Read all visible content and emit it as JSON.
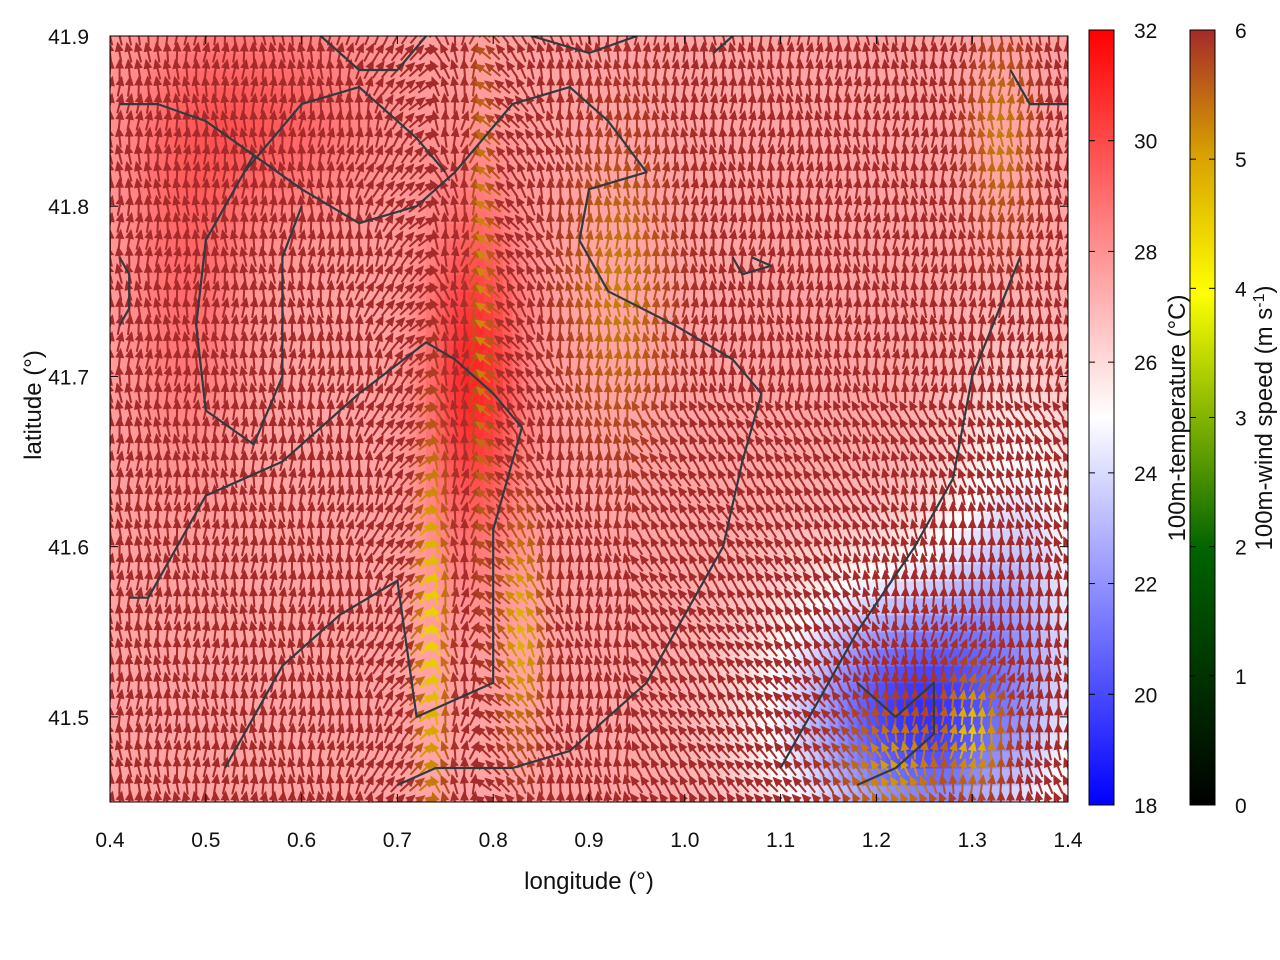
{
  "chart_data": {
    "type": "heatmap",
    "subtype": "vector-field-over-temperature-map-with-contours",
    "title": "",
    "xlabel": "longitude (°)",
    "ylabel": "latitude (°)",
    "xlim": [
      0.4,
      1.4
    ],
    "ylim": [
      41.45,
      41.9
    ],
    "xticks": [
      "0.4",
      "0.5",
      "0.6",
      "0.7",
      "0.8",
      "0.9",
      "1.0",
      "1.1",
      "1.2",
      "1.3",
      "1.4"
    ],
    "xtick_values": [
      0.4,
      0.5,
      0.6,
      0.7,
      0.8,
      0.9,
      1.0,
      1.1,
      1.2,
      1.3,
      1.4
    ],
    "yticks": [
      "41.5",
      "41.6",
      "41.7",
      "41.8",
      "41.9"
    ],
    "ytick_values": [
      41.5,
      41.6,
      41.7,
      41.8,
      41.9
    ],
    "grid": false,
    "colorbars": [
      {
        "label": "100m-temperature (°C)",
        "min": 18,
        "max": 32,
        "ticks": [
          "18",
          "20",
          "22",
          "24",
          "26",
          "28",
          "30",
          "32"
        ],
        "tick_values": [
          18,
          20,
          22,
          24,
          26,
          28,
          30,
          32
        ],
        "colors": [
          "#0000ff",
          "#ffffff",
          "#ff0000"
        ]
      },
      {
        "label": "100m-wind speed (m s",
        "label_sup": "-1",
        "label_end": ")",
        "min": 0,
        "max": 6,
        "ticks": [
          "0",
          "1",
          "2",
          "3",
          "4",
          "5",
          "6"
        ],
        "tick_values": [
          0,
          1,
          2,
          3,
          4,
          5,
          6
        ],
        "colors": [
          "#000000",
          "#006400",
          "#ffff00",
          "#d8a000",
          "#a52a2a"
        ]
      }
    ],
    "temperature_field": {
      "background_c": 27.5,
      "features": [
        {
          "kind": "warm",
          "lon": 0.78,
          "lat": 41.7,
          "amplitude": 3.5,
          "radius_lon": 0.05,
          "radius_lat": 0.1
        },
        {
          "kind": "warm",
          "lon": 0.55,
          "lat": 41.85,
          "amplitude": 2.0,
          "radius_lon": 0.12,
          "radius_lat": 0.06
        },
        {
          "kind": "warm",
          "lon": 0.48,
          "lat": 41.75,
          "amplitude": 1.5,
          "radius_lon": 0.06,
          "radius_lat": 0.1
        },
        {
          "kind": "cool",
          "lon": 1.24,
          "lat": 41.5,
          "amplitude": -8.0,
          "radius_lon": 0.14,
          "radius_lat": 0.08
        },
        {
          "kind": "cool",
          "lon": 1.35,
          "lat": 41.6,
          "amplitude": -3.0,
          "radius_lon": 0.08,
          "radius_lat": 0.1
        }
      ]
    },
    "wind_field": {
      "grid_spacing_deg": 0.01,
      "background_speed_ms": 6.0,
      "slow_zones": [
        {
          "lon": 0.735,
          "lat": 41.55,
          "min_speed": 4.3,
          "radius_lon": 0.015,
          "radius_lat": 0.1
        },
        {
          "lon": 0.79,
          "lat": 41.75,
          "min_speed": 5.2,
          "radius_lon": 0.012,
          "radius_lat": 0.15
        },
        {
          "lon": 0.83,
          "lat": 41.55,
          "min_speed": 4.8,
          "radius_lon": 0.02,
          "radius_lat": 0.06
        },
        {
          "lon": 0.93,
          "lat": 41.75,
          "min_speed": 5.3,
          "radius_lon": 0.05,
          "radius_lat": 0.08
        },
        {
          "lon": 1.22,
          "lat": 41.47,
          "min_speed": 5.0,
          "radius_lon": 0.05,
          "radius_lat": 0.03
        },
        {
          "lon": 1.3,
          "lat": 41.49,
          "min_speed": 4.6,
          "radius_lon": 0.03,
          "radius_lat": 0.03
        },
        {
          "lon": 1.33,
          "lat": 41.84,
          "min_speed": 5.3,
          "radius_lon": 0.03,
          "radius_lat": 0.05
        }
      ],
      "convergence_lines": [
        {
          "lon": 0.79
        },
        {
          "lon": 0.735
        }
      ],
      "diffluence_point": {
        "lon": 1.23,
        "lat": 41.53
      }
    },
    "contours": [
      {
        "name": "c1",
        "points": [
          [
            0.42,
            41.57
          ],
          [
            0.44,
            41.57
          ],
          [
            0.5,
            41.63
          ],
          [
            0.58,
            41.65
          ],
          [
            0.66,
            41.69
          ],
          [
            0.73,
            41.72
          ],
          [
            0.76,
            41.71
          ],
          [
            0.8,
            41.69
          ],
          [
            0.83,
            41.67
          ],
          [
            0.8,
            41.61
          ],
          [
            0.8,
            41.52
          ],
          [
            0.76,
            41.51
          ],
          [
            0.72,
            41.5
          ],
          [
            0.7,
            41.58
          ],
          [
            0.64,
            41.56
          ],
          [
            0.58,
            41.53
          ],
          [
            0.52,
            41.47
          ]
        ]
      },
      {
        "name": "c2",
        "points": [
          [
            0.41,
            41.86
          ],
          [
            0.45,
            41.86
          ],
          [
            0.5,
            41.85
          ],
          [
            0.55,
            41.83
          ],
          [
            0.6,
            41.81
          ],
          [
            0.66,
            41.79
          ],
          [
            0.72,
            41.8
          ],
          [
            0.76,
            41.82
          ],
          [
            0.82,
            41.86
          ],
          [
            0.88,
            41.87
          ],
          [
            0.92,
            41.85
          ],
          [
            0.96,
            41.82
          ],
          [
            0.9,
            41.81
          ],
          [
            0.89,
            41.78
          ],
          [
            0.92,
            41.75
          ],
          [
            0.99,
            41.73
          ],
          [
            1.05,
            41.71
          ],
          [
            1.08,
            41.69
          ],
          [
            1.06,
            41.65
          ],
          [
            1.04,
            41.6
          ],
          [
            1.0,
            41.56
          ],
          [
            0.96,
            41.52
          ],
          [
            0.92,
            41.5
          ],
          [
            0.88,
            41.48
          ],
          [
            0.82,
            41.47
          ],
          [
            0.74,
            41.47
          ],
          [
            0.7,
            41.46
          ]
        ]
      },
      {
        "name": "c3",
        "points": [
          [
            0.54,
            41.82
          ],
          [
            0.6,
            41.86
          ],
          [
            0.66,
            41.87
          ],
          [
            0.72,
            41.84
          ],
          [
            0.75,
            41.82
          ]
        ]
      },
      {
        "name": "c4",
        "points": [
          [
            0.62,
            41.9
          ],
          [
            0.66,
            41.88
          ],
          [
            0.7,
            41.88
          ],
          [
            0.73,
            41.9
          ]
        ]
      },
      {
        "name": "c5",
        "points": [
          [
            0.84,
            41.9
          ],
          [
            0.9,
            41.89
          ],
          [
            0.95,
            41.9
          ]
        ]
      },
      {
        "name": "c6",
        "points": [
          [
            1.03,
            41.89
          ],
          [
            1.05,
            41.9
          ]
        ]
      },
      {
        "name": "c7",
        "points": [
          [
            1.34,
            41.88
          ],
          [
            1.36,
            41.86
          ],
          [
            1.4,
            41.86
          ]
        ]
      },
      {
        "name": "c8",
        "points": [
          [
            1.35,
            41.77
          ],
          [
            1.3,
            41.7
          ],
          [
            1.28,
            41.64
          ],
          [
            1.24,
            41.6
          ],
          [
            1.18,
            41.55
          ],
          [
            1.14,
            41.51
          ],
          [
            1.1,
            41.47
          ]
        ]
      },
      {
        "name": "c9",
        "points": [
          [
            1.18,
            41.52
          ],
          [
            1.22,
            41.5
          ],
          [
            1.26,
            41.52
          ],
          [
            1.26,
            41.49
          ],
          [
            1.22,
            41.47
          ],
          [
            1.18,
            41.46
          ]
        ]
      },
      {
        "name": "c10",
        "points": [
          [
            0.55,
            41.83
          ],
          [
            0.5,
            41.78
          ],
          [
            0.49,
            41.73
          ],
          [
            0.5,
            41.68
          ],
          [
            0.55,
            41.66
          ],
          [
            0.58,
            41.7
          ],
          [
            0.58,
            41.77
          ],
          [
            0.6,
            41.8
          ]
        ]
      },
      {
        "name": "c11",
        "points": [
          [
            0.41,
            41.77
          ],
          [
            0.42,
            41.76
          ],
          [
            0.42,
            41.74
          ],
          [
            0.41,
            41.73
          ]
        ]
      },
      {
        "name": "c12",
        "points": [
          [
            1.07,
            41.77
          ],
          [
            1.09,
            41.765
          ],
          [
            1.06,
            41.76
          ],
          [
            1.05,
            41.77
          ]
        ]
      }
    ]
  }
}
